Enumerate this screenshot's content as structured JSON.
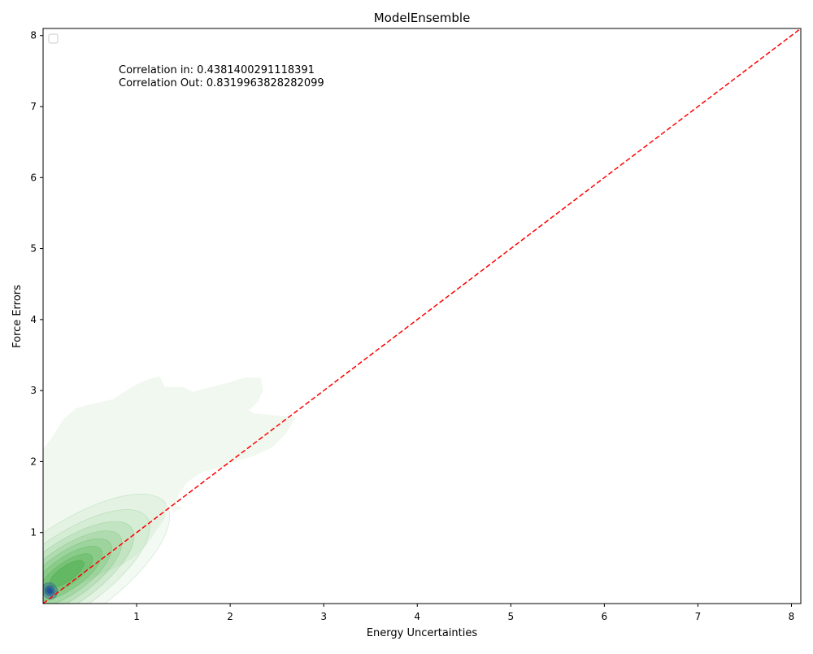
{
  "chart_data": {
    "type": "scatter",
    "title": "ModelEnsemble",
    "xlabel": "Energy Uncertainties",
    "ylabel": "Force Errors",
    "xlim": [
      0,
      8.1
    ],
    "ylim": [
      0,
      8.1
    ],
    "xticks": [
      1,
      2,
      3,
      4,
      5,
      6,
      7,
      8
    ],
    "yticks": [
      1,
      2,
      3,
      4,
      5,
      6,
      7,
      8
    ],
    "grid": false,
    "legend": {
      "placement": "top-left",
      "entries": []
    },
    "annotations": [
      "Correlation in: 0.4381400291118391",
      "Correlation Out: 0.8319963828282099"
    ],
    "reference_line": {
      "style": "dashed",
      "color": "#ff0000",
      "points": [
        [
          0,
          0
        ],
        [
          8.1,
          8.1
        ]
      ]
    },
    "density_series": [
      {
        "color": "#2ca02c",
        "peak": [
          0.25,
          0.42
        ],
        "outline": [
          [
            0.0,
            2.18
          ],
          [
            0.1,
            2.35
          ],
          [
            0.22,
            2.6
          ],
          [
            0.35,
            2.75
          ],
          [
            0.55,
            2.82
          ],
          [
            0.75,
            2.88
          ],
          [
            0.95,
            3.05
          ],
          [
            1.1,
            3.15
          ],
          [
            1.25,
            3.2
          ],
          [
            1.3,
            3.05
          ],
          [
            1.5,
            3.05
          ],
          [
            1.6,
            2.98
          ],
          [
            1.7,
            3.02
          ],
          [
            1.95,
            3.1
          ],
          [
            2.15,
            3.18
          ],
          [
            2.33,
            3.18
          ],
          [
            2.35,
            3.0
          ],
          [
            2.3,
            2.85
          ],
          [
            2.2,
            2.72
          ],
          [
            2.25,
            2.68
          ],
          [
            2.5,
            2.65
          ],
          [
            2.7,
            2.62
          ],
          [
            2.6,
            2.4
          ],
          [
            2.45,
            2.2
          ],
          [
            2.25,
            2.08
          ],
          [
            2.05,
            2.0
          ],
          [
            1.9,
            1.92
          ],
          [
            1.7,
            1.85
          ],
          [
            1.55,
            1.72
          ],
          [
            1.45,
            1.55
          ],
          [
            1.42,
            1.38
          ],
          [
            1.5,
            1.35
          ],
          [
            1.4,
            1.3
          ],
          [
            1.32,
            1.42
          ],
          [
            1.3,
            1.2
          ],
          [
            1.22,
            1.05
          ],
          [
            1.12,
            0.85
          ],
          [
            1.0,
            0.68
          ],
          [
            0.85,
            0.55
          ],
          [
            0.6,
            0.4
          ],
          [
            0.4,
            0.28
          ],
          [
            0.2,
            0.12
          ],
          [
            0.0,
            0.0
          ]
        ],
        "levels": [
          {
            "rx": 1.3,
            "ry": 0.5,
            "alpha": 0.06
          },
          {
            "rx": 1.05,
            "ry": 0.4,
            "alpha": 0.08
          },
          {
            "rx": 0.85,
            "ry": 0.33,
            "alpha": 0.1
          },
          {
            "rx": 0.7,
            "ry": 0.27,
            "alpha": 0.12
          },
          {
            "rx": 0.57,
            "ry": 0.22,
            "alpha": 0.14
          },
          {
            "rx": 0.45,
            "ry": 0.17,
            "alpha": 0.16
          },
          {
            "rx": 0.33,
            "ry": 0.12,
            "alpha": 0.2
          },
          {
            "rx": 0.22,
            "ry": 0.08,
            "alpha": 0.26
          }
        ]
      },
      {
        "color": "#1f4e9c",
        "peak": [
          0.07,
          0.18
        ],
        "levels": [
          {
            "rx": 0.08,
            "ry": 0.09,
            "alpha": 0.35
          },
          {
            "rx": 0.05,
            "ry": 0.055,
            "alpha": 0.55
          },
          {
            "rx": 0.025,
            "ry": 0.03,
            "alpha": 0.8
          }
        ]
      }
    ]
  }
}
